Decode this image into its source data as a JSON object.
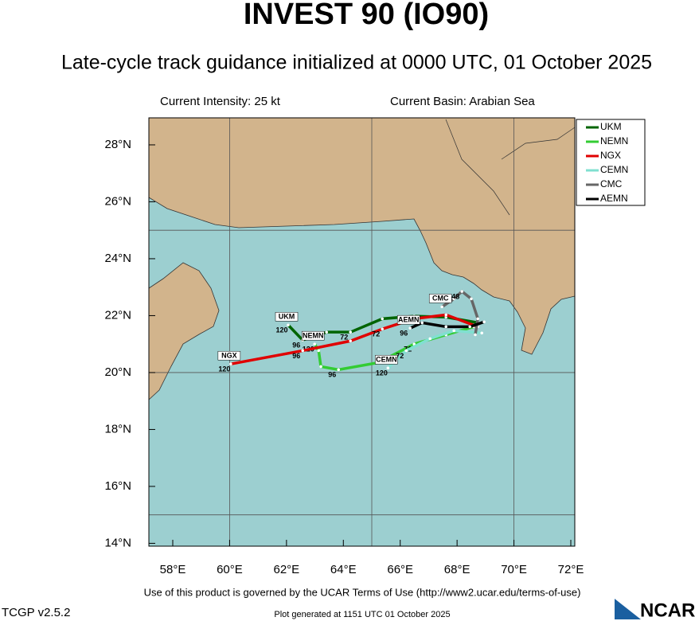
{
  "chart_data": {
    "type": "track",
    "title": "INVEST 90 (IO90)",
    "subtitle": "Late-cycle track guidance initialized at 0000 UTC, 01 October 2025",
    "annotations": [
      "Current Intensity: 25 kt",
      "Current Basin: Arabian Sea"
    ],
    "footer": [
      "Use of this product is governed by the UCAR Terms of Use (http://www2.ucar.edu/terms-of-use)",
      "TCGP v2.5.2",
      "Plot generated at 1151 UTC   01 October 2025",
      "NCAR"
    ],
    "xlim": [
      57.16,
      72.14
    ],
    "ylim": [
      13.9,
      28.95
    ],
    "xticks": [
      {
        "value": 58,
        "label": "58°E"
      },
      {
        "value": 60,
        "label": "60°E"
      },
      {
        "value": 62,
        "label": "62°E"
      },
      {
        "value": 64,
        "label": "64°E"
      },
      {
        "value": 66,
        "label": "66°E"
      },
      {
        "value": 68,
        "label": "68°E"
      },
      {
        "value": 70,
        "label": "70°E"
      },
      {
        "value": 72,
        "label": "72°E"
      }
    ],
    "yticks": [
      {
        "value": 14,
        "label": "14°N"
      },
      {
        "value": 16,
        "label": "16°N"
      },
      {
        "value": 18,
        "label": "18°N"
      },
      {
        "value": 20,
        "label": "20°N"
      },
      {
        "value": 22,
        "label": "22°N"
      },
      {
        "value": 24,
        "label": "24°N"
      },
      {
        "value": 26,
        "label": "26°N"
      },
      {
        "value": 28,
        "label": "28°N"
      }
    ],
    "grid_x": [
      60,
      65,
      70
    ],
    "grid_y": [
      15,
      20,
      25
    ],
    "legend": "top-right",
    "series": [
      {
        "name": "UKM",
        "color": "#006400",
        "x": [
          68.73,
          67.61,
          66.49,
          65.37,
          64.25,
          63.41,
          62.57,
          62.06
        ],
        "y": [
          21.75,
          21.95,
          21.98,
          21.89,
          21.42,
          21.42,
          21.14,
          21.67
        ],
        "hour_labels": [
          {
            "hour": 72,
            "index": 4
          },
          {
            "hour": 96,
            "index": 6
          },
          {
            "hour": 120,
            "index": 7
          }
        ]
      },
      {
        "name": "NEMN",
        "color": "#33cc33",
        "x": [
          68.59,
          67.61,
          66.49,
          65.23,
          63.83,
          63.21,
          63.13,
          62.99
        ],
        "y": [
          21.61,
          21.33,
          21.0,
          20.35,
          20.1,
          20.21,
          20.77,
          21.0
        ],
        "hour_labels": [
          {
            "hour": 72,
            "index": 2
          },
          {
            "hour": 96,
            "index": 4
          },
          {
            "hour": 120,
            "index": 7
          }
        ]
      },
      {
        "name": "NGX",
        "color": "#e00000",
        "x": [
          68.73,
          67.61,
          66.49,
          65.37,
          64.25,
          62.57,
          60.04
        ],
        "y": [
          21.61,
          22.03,
          21.89,
          21.53,
          21.11,
          20.77,
          20.3
        ],
        "hour_labels": [
          {
            "hour": 72,
            "index": 3
          },
          {
            "hour": 96,
            "index": 5
          },
          {
            "hour": 120,
            "index": 6
          }
        ]
      },
      {
        "name": "CEMN",
        "color": "#80e0d0",
        "x": [
          68.87,
          67.89,
          67.05,
          66.21,
          65.57
        ],
        "y": [
          21.39,
          21.47,
          21.19,
          20.77,
          20.16
        ],
        "hour_labels": [
          {
            "hour": 72,
            "index": 3
          },
          {
            "hour": 120,
            "index": 4
          }
        ]
      },
      {
        "name": "CMC",
        "color": "#666666",
        "x": [
          68.64,
          68.73,
          68.5,
          68.17,
          67.89,
          67.47
        ],
        "y": [
          21.33,
          21.89,
          22.59,
          22.85,
          22.59,
          22.31
        ],
        "hour_labels": [
          {
            "hour": 48,
            "index": 3
          }
        ]
      },
      {
        "name": "AEMN",
        "color": "#000000",
        "x": [
          68.95,
          68.45,
          67.61,
          66.77,
          66.35
        ],
        "y": [
          21.78,
          21.61,
          21.61,
          21.75,
          21.56
        ],
        "hour_labels": [
          {
            "hour": 96,
            "index": 4
          }
        ]
      }
    ]
  }
}
